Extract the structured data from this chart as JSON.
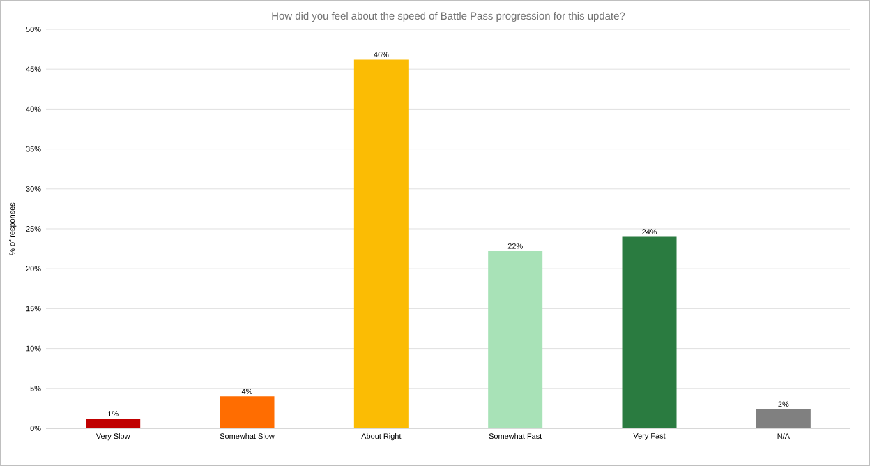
{
  "chart_data": {
    "type": "bar",
    "title": "How did you feel about the speed of Battle Pass progression for this update?",
    "ylabel": "% of responses",
    "categories": [
      "Very Slow",
      "Somewhat Slow",
      "About Right",
      "Somewhat Fast",
      "Very Fast",
      "N/A"
    ],
    "values": [
      1.2,
      4.0,
      46.2,
      22.2,
      24.0,
      2.4
    ],
    "colors": [
      "#c00000",
      "#ff6d01",
      "#fbbc04",
      "#a8e2b7",
      "#2a7b40",
      "#808080"
    ],
    "value_labels": [
      "1%",
      "4%",
      "46%",
      "22%",
      "24%",
      "2%"
    ],
    "ylim": [
      0,
      50
    ],
    "yticks": [
      {
        "value": 0,
        "label": "0%"
      },
      {
        "value": 5,
        "label": "5%"
      },
      {
        "value": 10,
        "label": "10%"
      },
      {
        "value": 15,
        "label": "15%"
      },
      {
        "value": 20,
        "label": "20%"
      },
      {
        "value": 25,
        "label": "25%"
      },
      {
        "value": 30,
        "label": "30%"
      },
      {
        "value": 35,
        "label": "35%"
      },
      {
        "value": 40,
        "label": "40%"
      },
      {
        "value": 45,
        "label": "45%"
      },
      {
        "value": 50,
        "label": "50%"
      }
    ],
    "grid": "y"
  }
}
